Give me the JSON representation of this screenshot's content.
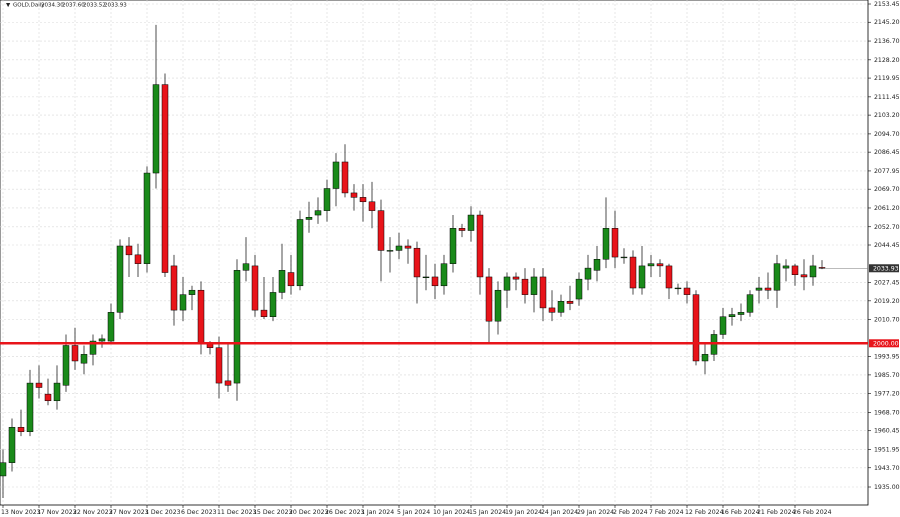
{
  "chart_data": {
    "type": "candlestick",
    "header": [
      "GOLD,Daily",
      "2034.30",
      "2037.60",
      "2033.52",
      "2033.93"
    ],
    "up_color": "#1a8a1a",
    "down_color": "#e8141a",
    "grid": true,
    "ylim": [
      1926.86,
      2155.26
    ],
    "yticks": [
      {
        "value": 1935.0,
        "label": "1935.00"
      },
      {
        "value": 1943.7,
        "label": "1943.70"
      },
      {
        "value": 1951.95,
        "label": "1951.95"
      },
      {
        "value": 1960.45,
        "label": "1960.45"
      },
      {
        "value": 1968.7,
        "label": "1968.70"
      },
      {
        "value": 1977.2,
        "label": "1977.20"
      },
      {
        "value": 1985.7,
        "label": "1985.70"
      },
      {
        "value": 1993.95,
        "label": "1993.95"
      },
      {
        "value": 2010.7,
        "label": "2010.70"
      },
      {
        "value": 2019.2,
        "label": "2019.20"
      },
      {
        "value": 2027.45,
        "label": "2027.45"
      },
      {
        "value": 2044.45,
        "label": "2044.45"
      },
      {
        "value": 2052.7,
        "label": "2052.70"
      },
      {
        "value": 2061.2,
        "label": "2061.20"
      },
      {
        "value": 2069.7,
        "label": "2069.70"
      },
      {
        "value": 2077.95,
        "label": "2077.95"
      },
      {
        "value": 2086.45,
        "label": "2086.45"
      },
      {
        "value": 2094.7,
        "label": "2094.70"
      },
      {
        "value": 2103.2,
        "label": "2103.20"
      },
      {
        "value": 2111.45,
        "label": "2111.45"
      },
      {
        "value": 2119.95,
        "label": "2119.95"
      },
      {
        "value": 2128.2,
        "label": "2128.20"
      },
      {
        "value": 2136.7,
        "label": "2136.70"
      },
      {
        "value": 2145.2,
        "label": "2145.20"
      },
      {
        "value": 2153.45,
        "label": "2153.45"
      }
    ],
    "levels": [
      {
        "value": 2000.0,
        "label": "2000.00",
        "color": "#e8141a"
      }
    ],
    "price_tag": {
      "value": 2033.93,
      "label": "2033.93"
    },
    "categories": [
      "13 Nov 2023",
      null,
      null,
      null,
      "17 Nov 2023",
      null,
      null,
      null,
      "22 Nov 2023",
      null,
      null,
      null,
      "27 Nov 2023",
      null,
      null,
      null,
      "1 Dec 2023",
      null,
      null,
      null,
      "6 Dec 2023",
      null,
      null,
      null,
      "11 Dec 2023",
      null,
      null,
      null,
      "15 Dec 2023",
      null,
      null,
      null,
      "20 Dec 2023",
      null,
      null,
      null,
      "26 Dec 2023",
      null,
      null,
      null,
      "1 Jan 2024",
      null,
      null,
      null,
      "5 Jan 2024",
      null,
      null,
      null,
      "10 Jan 2024",
      null,
      null,
      null,
      "15 Jan 2024",
      null,
      null,
      null,
      "19 Jan 2024",
      null,
      null,
      null,
      "24 Jan 2024",
      null,
      null,
      null,
      "29 Jan 2024",
      null,
      null,
      null,
      "2 Feb 2024",
      null,
      null,
      null,
      "7 Feb 2024",
      null,
      null,
      null,
      "12 Feb 2024",
      null,
      null,
      null,
      "16 Feb 2024",
      null,
      null,
      null,
      "21 Feb 2024",
      null,
      null,
      null,
      "26 Feb 2024",
      null,
      null,
      null
    ],
    "ohlc": [
      [
        1940,
        1952,
        1930,
        1946
      ],
      [
        1946,
        1966,
        1942,
        1962
      ],
      [
        1962,
        1970,
        1958,
        1960
      ],
      [
        1960,
        1988,
        1958,
        1982
      ],
      [
        1982,
        1990,
        1975,
        1980
      ],
      [
        1977,
        1984,
        1972,
        1974
      ],
      [
        1974,
        1990,
        1970,
        1982
      ],
      [
        1981,
        2004,
        1978,
        1999
      ],
      [
        1999,
        2007,
        1988,
        1992
      ],
      [
        1991,
        1999,
        1986,
        1995
      ],
      [
        1995,
        2004,
        1990,
        2001
      ],
      [
        2001,
        2004,
        1998,
        2002
      ],
      [
        2001,
        2018,
        2000,
        2014
      ],
      [
        2014,
        2047,
        2011,
        2044
      ],
      [
        2044,
        2048,
        2030,
        2040
      ],
      [
        2040,
        2045,
        2030,
        2036
      ],
      [
        2036,
        2080,
        2032,
        2077
      ],
      [
        2077,
        2144,
        2070,
        2117
      ],
      [
        2117,
        2122,
        2030,
        2032
      ],
      [
        2035,
        2040,
        2008,
        2015
      ],
      [
        2015,
        2030,
        2010,
        2022
      ],
      [
        2022,
        2026,
        2015,
        2024
      ],
      [
        2024,
        2028,
        1995,
        2000
      ],
      [
        2000,
        2001,
        1995,
        1998
      ],
      [
        1998,
        2003,
        1975,
        1982
      ],
      [
        1983,
        2000,
        1978,
        1981
      ],
      [
        1982,
        2038,
        1974,
        2033
      ],
      [
        2033,
        2048,
        2028,
        2036
      ],
      [
        2035,
        2040,
        2012,
        2015
      ],
      [
        2015,
        2030,
        2011,
        2012
      ],
      [
        2012,
        2030,
        2010,
        2023
      ],
      [
        2023,
        2045,
        2020,
        2033
      ],
      [
        2032,
        2040,
        2022,
        2026
      ],
      [
        2026,
        2060,
        2024,
        2056
      ],
      [
        2056,
        2064,
        2050,
        2057
      ],
      [
        2058,
        2066,
        2054,
        2060
      ],
      [
        2060,
        2074,
        2055,
        2070
      ],
      [
        2070,
        2086,
        2062,
        2082
      ],
      [
        2082,
        2090,
        2066,
        2068
      ],
      [
        2068,
        2072,
        2060,
        2066
      ],
      [
        2066,
        2072,
        2055,
        2064
      ],
      [
        2064,
        2073,
        2052,
        2060
      ],
      [
        2060,
        2065,
        2028,
        2042
      ],
      [
        2042,
        2048,
        2032,
        2042
      ],
      [
        2042,
        2050,
        2038,
        2044
      ],
      [
        2044,
        2047,
        2036,
        2043
      ],
      [
        2043,
        2046,
        2018,
        2030
      ],
      [
        2030,
        2040,
        2024,
        2030
      ],
      [
        2030,
        2036,
        2020,
        2026
      ],
      [
        2026,
        2040,
        2022,
        2036
      ],
      [
        2036,
        2058,
        2032,
        2052
      ],
      [
        2052,
        2054,
        2048,
        2051
      ],
      [
        2051,
        2062,
        2046,
        2058
      ],
      [
        2058,
        2060,
        2022,
        2030
      ],
      [
        2030,
        2034,
        2000,
        2010
      ],
      [
        2010,
        2028,
        2004,
        2024
      ],
      [
        2024,
        2032,
        2016,
        2030
      ],
      [
        2030,
        2032,
        2024,
        2029
      ],
      [
        2029,
        2034,
        2018,
        2022
      ],
      [
        2022,
        2034,
        2014,
        2030
      ],
      [
        2030,
        2034,
        2010,
        2016
      ],
      [
        2016,
        2024,
        2010,
        2014
      ],
      [
        2014,
        2022,
        2012,
        2019
      ],
      [
        2019,
        2026,
        2015,
        2018
      ],
      [
        2020,
        2032,
        2017,
        2029
      ],
      [
        2029,
        2040,
        2024,
        2034
      ],
      [
        2033,
        2044,
        2028,
        2038
      ],
      [
        2038,
        2066,
        2034,
        2052
      ],
      [
        2052,
        2060,
        2034,
        2039
      ],
      [
        2039,
        2043,
        2036,
        2039
      ],
      [
        2039,
        2042,
        2022,
        2025
      ],
      [
        2025,
        2044,
        2022,
        2035
      ],
      [
        2035,
        2040,
        2030,
        2036
      ],
      [
        2036,
        2038,
        2030,
        2035
      ],
      [
        2035,
        2036,
        2020,
        2025
      ],
      [
        2025,
        2027,
        2022,
        2025
      ],
      [
        2025,
        2028,
        2018,
        2022
      ],
      [
        2022,
        2024,
        1990,
        1992
      ],
      [
        1992,
        2000,
        1986,
        1995
      ],
      [
        1995,
        2006,
        1992,
        2004
      ],
      [
        2004,
        2016,
        2002,
        2012
      ],
      [
        2012,
        2016,
        2008,
        2013
      ],
      [
        2013,
        2018,
        2010,
        2014
      ],
      [
        2014,
        2024,
        2012,
        2022
      ],
      [
        2024,
        2030,
        2018,
        2025
      ],
      [
        2025,
        2032,
        2020,
        2024
      ],
      [
        2024,
        2040,
        2016,
        2036
      ],
      [
        2034,
        2038,
        2028,
        2035
      ],
      [
        2035,
        2036,
        2026,
        2031
      ],
      [
        2031,
        2038,
        2024,
        2030
      ],
      [
        2030,
        2040,
        2026,
        2035
      ],
      [
        2034.3,
        2037.6,
        2033.52,
        2033.93
      ]
    ]
  }
}
